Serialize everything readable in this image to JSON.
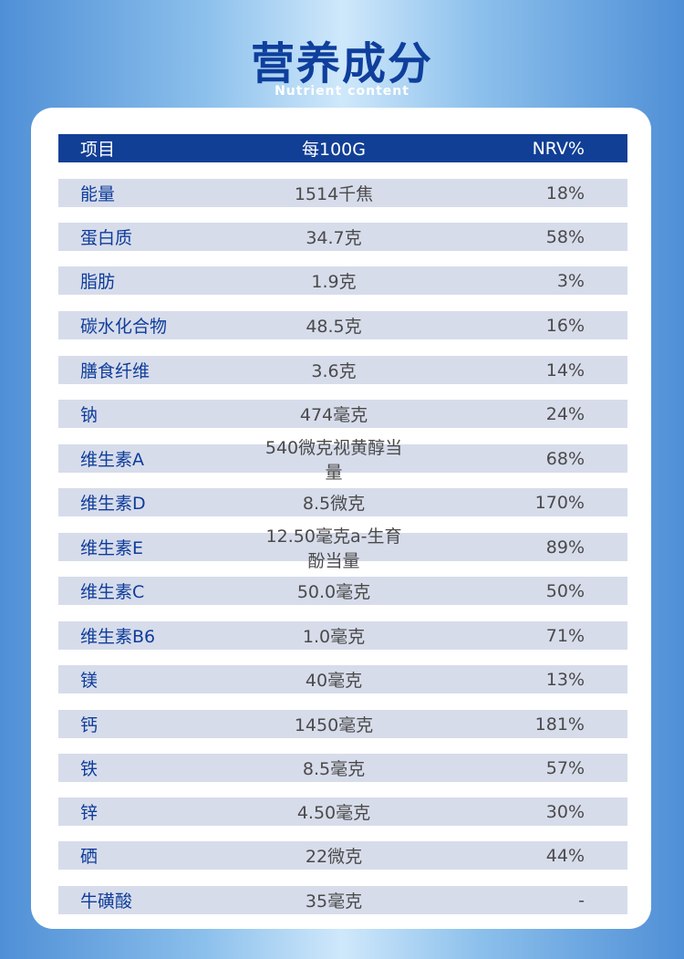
{
  "title": "营养成分",
  "subtitle": "Nutrient content",
  "table": {
    "headers": [
      "项目",
      "每100G",
      "NRV%"
    ],
    "rows": [
      [
        "能量",
        "1514千焦",
        "18%"
      ],
      [
        "蛋白质",
        "34.7克",
        "58%"
      ],
      [
        "脂肪",
        "1.9克",
        "3%"
      ],
      [
        "碳水化合物",
        "48.5克",
        "16%"
      ],
      [
        "膳食纤维",
        "3.6克",
        "14%"
      ],
      [
        "钠",
        "474毫克",
        "24%"
      ],
      [
        "维生素A",
        "540微克视黄醇当量",
        "68%"
      ],
      [
        "维生素D",
        "8.5微克",
        "170%"
      ],
      [
        "维生素E",
        "12.50毫克a-生育酚当量",
        "89%"
      ],
      [
        "维生素C",
        "50.0毫克",
        "50%"
      ],
      [
        "维生素B6",
        "1.0毫克",
        "71%"
      ],
      [
        "镁",
        "40毫克",
        "13%"
      ],
      [
        "钙",
        "1450毫克",
        "181%"
      ],
      [
        "铁",
        "8.5毫克",
        "57%"
      ],
      [
        "锌",
        "4.50毫克",
        "30%"
      ],
      [
        "硒",
        "22微克",
        "44%"
      ],
      [
        "牛磺酸",
        "35毫克",
        "-"
      ]
    ]
  }
}
